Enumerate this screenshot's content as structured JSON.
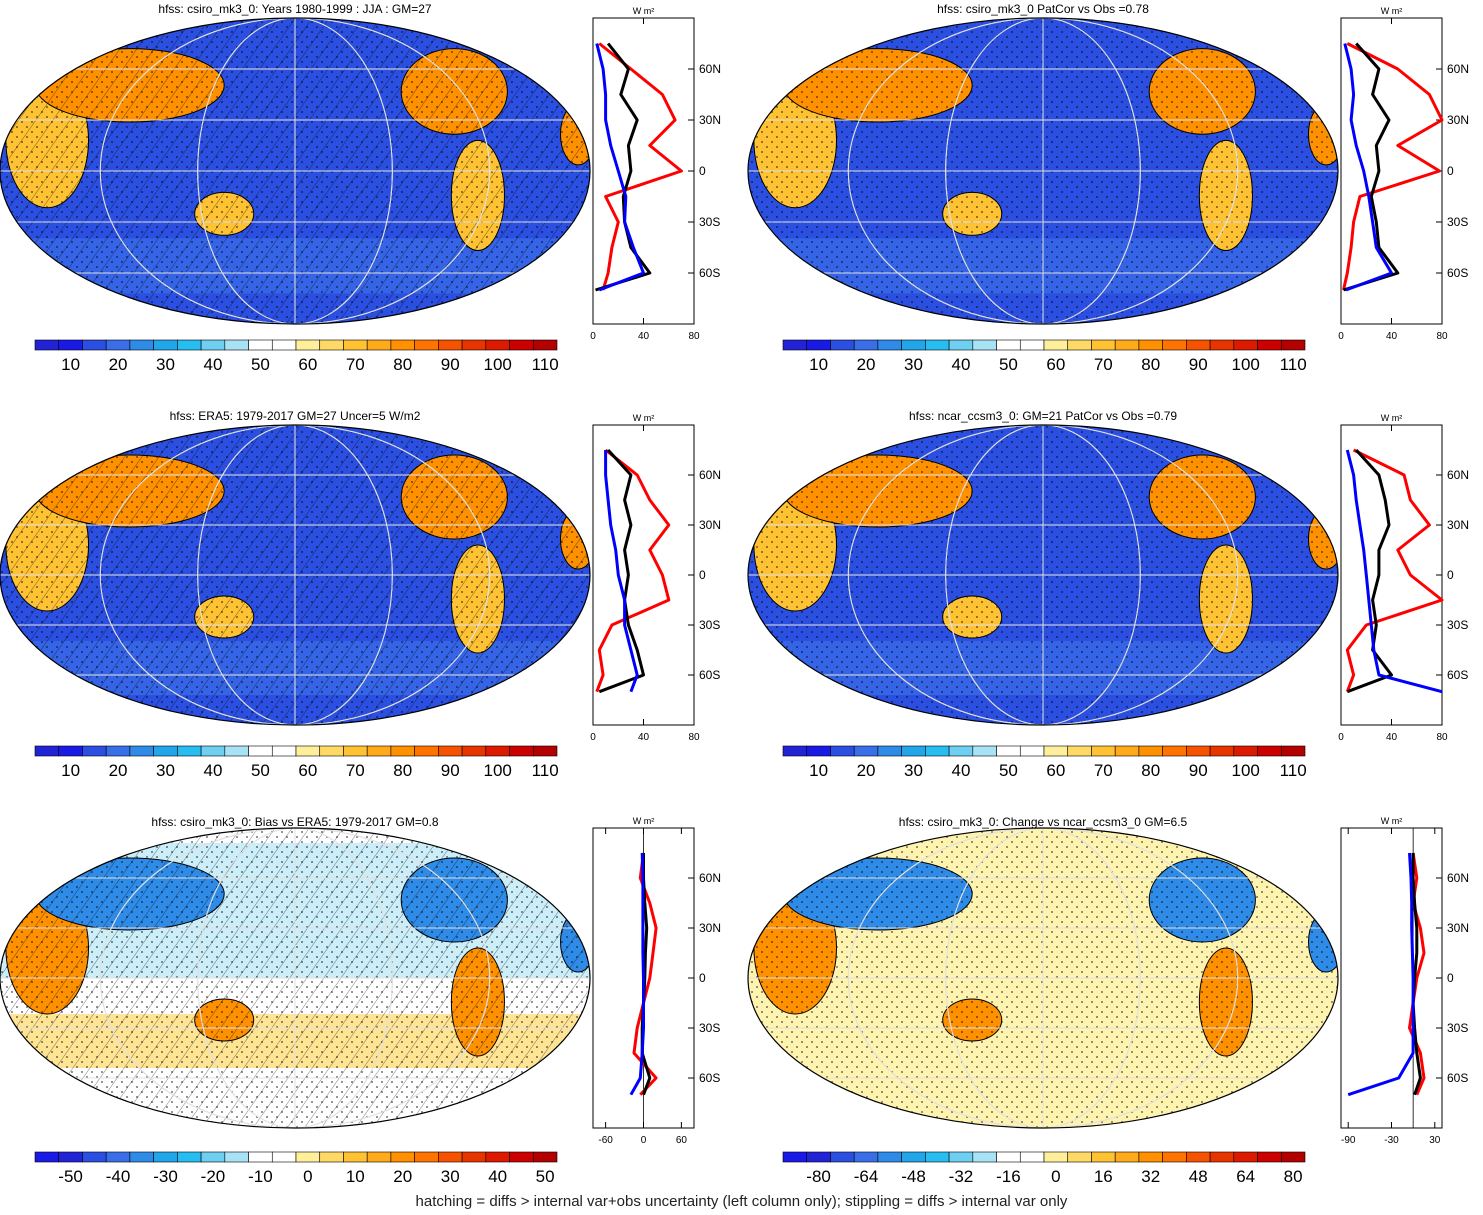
{
  "footer": "hatching = diffs > internal var+obs uncertainty (left column only); stippling = diffs > internal var only",
  "profile_unit": "W m²",
  "lat_labels": [
    "60N",
    "30N",
    "0",
    "30S",
    "60S"
  ],
  "palettes": {
    "abs": [
      "#2323d6",
      "#1a1ae6",
      "#2b4fe0",
      "#3a6ee8",
      "#2f8be8",
      "#22a6ea",
      "#27bdf0",
      "#6ecff0",
      "#a8e2f5",
      "#ffffff",
      "#ffffff",
      "#ffef9a",
      "#ffd966",
      "#ffc233",
      "#ffaa1a",
      "#ff9000",
      "#ff7300",
      "#f55300",
      "#e83400",
      "#dd1a00",
      "#cc0000",
      "#b30000"
    ],
    "diff": [
      "#1a1ae6",
      "#2323d6",
      "#2b4fe0",
      "#3a6ee8",
      "#2f8be8",
      "#22a6ea",
      "#27bdf0",
      "#6ecff0",
      "#a8e2f5",
      "#ffffff",
      "#ffffff",
      "#ffef9a",
      "#ffd966",
      "#ffc233",
      "#ffaa1a",
      "#ff9000",
      "#ff7300",
      "#f55300",
      "#e83400",
      "#dd1a00",
      "#cc0000",
      "#b30000"
    ]
  },
  "chart_data": [
    {
      "type": "heatmap",
      "title": "hfss: csiro_mk3_0: Years 1980-1999 : JJA : GM=27",
      "palette": "abs",
      "colorbar_labels": [
        "10",
        "20",
        "30",
        "40",
        "50",
        "60",
        "70",
        "80",
        "90",
        "100",
        "110"
      ],
      "profile": {
        "xticks": [
          "0",
          "40",
          "80"
        ],
        "xlim": [
          0,
          80
        ],
        "lat": [
          75,
          60,
          45,
          30,
          15,
          0,
          -15,
          -30,
          -45,
          -60,
          -70
        ],
        "series": [
          {
            "color": "#ff0000",
            "values": [
              5,
              30,
              55,
              65,
              45,
              70,
              10,
              20,
              15,
              12,
              8
            ]
          },
          {
            "color": "#000000",
            "values": [
              12,
              28,
              22,
              35,
              28,
              30,
              24,
              25,
              30,
              45,
              2
            ]
          },
          {
            "color": "#0000ff",
            "values": [
              3,
              8,
              10,
              10,
              14,
              20,
              26,
              25,
              32,
              40,
              5
            ]
          }
        ]
      }
    },
    {
      "type": "heatmap",
      "title": "hfss: csiro_mk3_0 PatCor vs Obs =0.78",
      "palette": "abs",
      "colorbar_labels": [
        "10",
        "20",
        "30",
        "40",
        "50",
        "60",
        "70",
        "80",
        "90",
        "100",
        "110"
      ],
      "profile": {
        "xticks": [
          "0",
          "40",
          "80"
        ],
        "xlim": [
          0,
          80
        ],
        "lat": [
          75,
          60,
          45,
          30,
          15,
          0,
          -15,
          -30,
          -45,
          -60,
          -70
        ],
        "series": [
          {
            "color": "#ff0000",
            "values": [
              5,
              45,
              70,
              80,
              45,
              78,
              15,
              10,
              8,
              5,
              2
            ]
          },
          {
            "color": "#000000",
            "values": [
              12,
              30,
              25,
              38,
              28,
              30,
              24,
              28,
              30,
              45,
              2
            ]
          },
          {
            "color": "#0000ff",
            "values": [
              3,
              8,
              10,
              8,
              12,
              18,
              22,
              25,
              28,
              40,
              4
            ]
          }
        ]
      }
    },
    {
      "type": "heatmap",
      "title": "hfss: ERA5: 1979-2017 GM=27 Uncer=5 W/m2",
      "palette": "abs",
      "colorbar_labels": [
        "10",
        "20",
        "30",
        "40",
        "50",
        "60",
        "70",
        "80",
        "90",
        "100",
        "110"
      ],
      "profile": {
        "xticks": [
          "0",
          "40",
          "80"
        ],
        "xlim": [
          0,
          80
        ],
        "lat": [
          75,
          60,
          45,
          30,
          15,
          0,
          -15,
          -30,
          -45,
          -60,
          -70
        ],
        "series": [
          {
            "color": "#ff0000",
            "values": [
              10,
              35,
              45,
              60,
              45,
              55,
              60,
              15,
              5,
              8,
              3
            ]
          },
          {
            "color": "#000000",
            "values": [
              12,
              30,
              25,
              30,
              25,
              28,
              25,
              28,
              35,
              40,
              5
            ]
          },
          {
            "color": "#0000ff",
            "values": [
              10,
              10,
              12,
              14,
              18,
              20,
              25,
              25,
              30,
              35,
              30
            ]
          }
        ]
      }
    },
    {
      "type": "heatmap",
      "title": "hfss: ncar_ccsm3_0: GM=21 PatCor vs Obs =0.79",
      "palette": "abs",
      "colorbar_labels": [
        "10",
        "20",
        "30",
        "40",
        "50",
        "60",
        "70",
        "80",
        "90",
        "100",
        "110"
      ],
      "profile": {
        "xticks": [
          "0",
          "40",
          "80"
        ],
        "xlim": [
          0,
          80
        ],
        "lat": [
          75,
          60,
          45,
          30,
          15,
          0,
          -15,
          -30,
          -45,
          -60,
          -70
        ],
        "series": [
          {
            "color": "#ff0000",
            "values": [
              10,
              50,
              55,
              70,
              45,
              55,
              80,
              20,
              5,
              10,
              5
            ]
          },
          {
            "color": "#000000",
            "values": [
              12,
              30,
              35,
              38,
              30,
              30,
              25,
              28,
              25,
              40,
              5
            ]
          },
          {
            "color": "#0000ff",
            "values": [
              5,
              10,
              12,
              15,
              18,
              20,
              22,
              24,
              26,
              30,
              80
            ]
          }
        ]
      }
    },
    {
      "type": "heatmap",
      "title": "hfss: csiro_mk3_0: Bias vs ERA5: 1979-2017 GM=0.8",
      "palette": "diff",
      "colorbar_labels": [
        "-50",
        "-40",
        "-30",
        "-20",
        "-10",
        "0",
        "10",
        "20",
        "30",
        "40",
        "50"
      ],
      "profile": {
        "xticks": [
          "-60",
          "0",
          "60"
        ],
        "xlim": [
          -80,
          80
        ],
        "lat": [
          75,
          60,
          45,
          30,
          15,
          0,
          -15,
          -30,
          -45,
          -60,
          -70
        ],
        "series": [
          {
            "color": "#ff0000",
            "values": [
              0,
              -5,
              10,
              20,
              15,
              10,
              0,
              -10,
              -15,
              20,
              -5
            ]
          },
          {
            "color": "#000000",
            "values": [
              0,
              0,
              2,
              5,
              3,
              2,
              0,
              -2,
              -2,
              10,
              0
            ]
          },
          {
            "color": "#0000ff",
            "values": [
              -2,
              -1,
              -1,
              -1,
              -1,
              0,
              0,
              0,
              -2,
              -5,
              -20
            ]
          }
        ]
      }
    },
    {
      "type": "heatmap",
      "title": "hfss: csiro_mk3_0: Change vs ncar_ccsm3_0 GM=6.5",
      "palette": "diff",
      "colorbar_labels": [
        "-80",
        "-64",
        "-48",
        "-32",
        "-16",
        "0",
        "16",
        "32",
        "48",
        "64",
        "80"
      ],
      "profile": {
        "xticks": [
          "-90",
          "-30",
          "30"
        ],
        "xlim": [
          -100,
          40
        ],
        "lat": [
          75,
          60,
          45,
          30,
          15,
          0,
          -15,
          -30,
          -45,
          -60,
          -70
        ],
        "series": [
          {
            "color": "#ff0000",
            "values": [
              0,
              5,
              0,
              10,
              15,
              5,
              0,
              -5,
              10,
              15,
              5
            ]
          },
          {
            "color": "#000000",
            "values": [
              0,
              0,
              2,
              5,
              5,
              2,
              0,
              2,
              5,
              10,
              2
            ]
          },
          {
            "color": "#0000ff",
            "values": [
              -5,
              -3,
              -2,
              -2,
              -1,
              0,
              0,
              0,
              0,
              -20,
              -90
            ]
          }
        ]
      }
    }
  ]
}
